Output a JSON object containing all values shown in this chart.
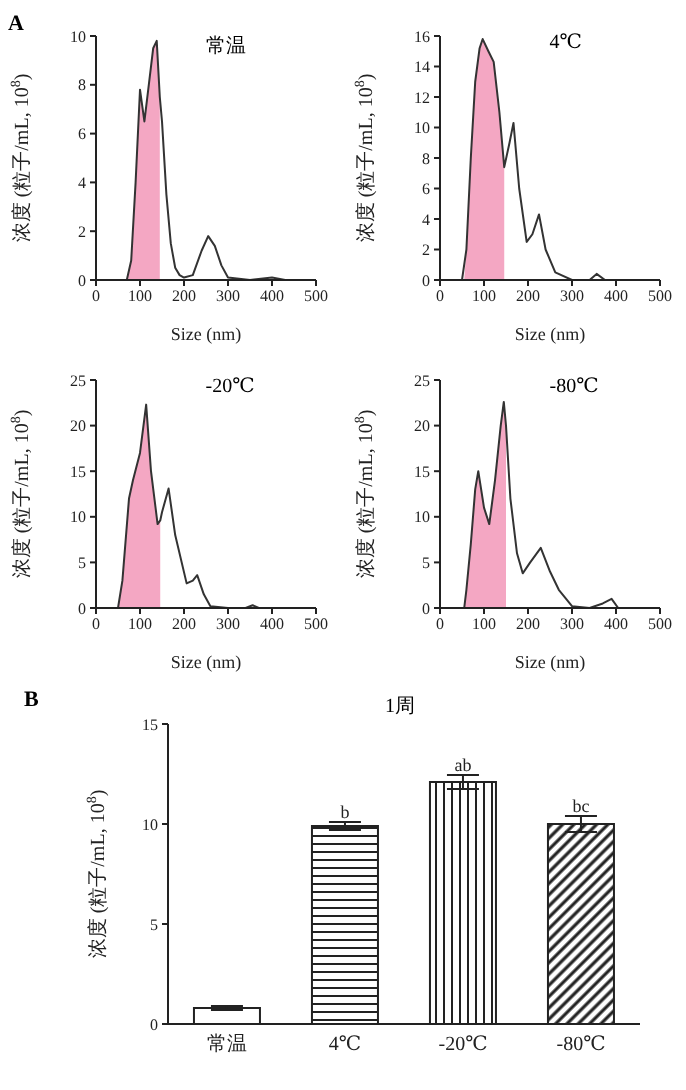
{
  "chart_data": [
    {
      "type": "line",
      "title": "常温",
      "xlabel": "Size (nm)",
      "ylabel": "浓度 (粒子/mL, 10$^{8}$)",
      "annotations": [
        "A"
      ],
      "marker": "none",
      "xlim": [
        0,
        500
      ],
      "xticks": [
        0,
        100,
        200,
        300,
        400,
        500
      ],
      "ylim": [
        0,
        10
      ],
      "yticks": [
        0,
        2,
        4,
        6,
        8,
        10
      ],
      "series": [
        {
          "type": "area",
          "color": "#f4a7c3",
          "x": [
            70,
            80,
            90,
            100,
            110,
            120,
            130,
            138,
            145
          ],
          "values": [
            0,
            0.8,
            4,
            7.8,
            6.5,
            8,
            9.5,
            9.8,
            7.5
          ]
        },
        {
          "type": "line",
          "color": "#333333",
          "x": [
            0,
            60,
            70,
            80,
            90,
            100,
            110,
            120,
            130,
            138,
            145,
            150,
            160,
            170,
            180,
            190,
            200,
            220,
            240,
            255,
            270,
            285,
            300,
            350,
            400,
            430,
            500
          ],
          "values": [
            0,
            0,
            0,
            0.8,
            4,
            7.8,
            6.5,
            8,
            9.5,
            9.8,
            7.5,
            6.5,
            3.5,
            1.5,
            0.5,
            0.2,
            0.1,
            0.2,
            1.2,
            1.8,
            1.4,
            0.6,
            0.1,
            0,
            0.1,
            0,
            0
          ]
        }
      ]
    },
    {
      "type": "line",
      "title": "4℃",
      "xlabel": "Size (nm)",
      "ylabel": "浓度 (粒子/mL, 10$^{8}$)",
      "marker": "none",
      "xlim": [
        0,
        500
      ],
      "xticks": [
        0,
        100,
        200,
        300,
        400,
        500
      ],
      "ylim": [
        0,
        16
      ],
      "yticks": [
        0,
        2,
        4,
        6,
        8,
        10,
        12,
        14,
        16
      ],
      "series": [
        {
          "type": "area",
          "color": "#f4a7c3",
          "x": [
            55,
            60,
            70,
            80,
            90,
            97,
            110,
            122,
            135,
            146
          ],
          "values": [
            0,
            2,
            8,
            13,
            15.2,
            15.8,
            15,
            14.3,
            11,
            7.4
          ]
        },
        {
          "type": "line",
          "color": "#333333",
          "x": [
            0,
            50,
            60,
            70,
            80,
            90,
            97,
            110,
            122,
            135,
            146,
            158,
            167,
            180,
            197,
            210,
            225,
            240,
            262,
            300,
            340,
            356,
            375,
            500
          ],
          "values": [
            0,
            0,
            2,
            8,
            13,
            15.2,
            15.8,
            15,
            14.3,
            11,
            7.4,
            9,
            10.3,
            6,
            2.5,
            3,
            4.3,
            2,
            0.5,
            0,
            0,
            0.4,
            0,
            0
          ]
        }
      ]
    },
    {
      "type": "line",
      "title": "-20℃",
      "xlabel": "Size (nm)",
      "ylabel": "浓度 (粒子/mL, 10$^{8}$)",
      "marker": "none",
      "xlim": [
        0,
        500
      ],
      "xticks": [
        0,
        100,
        200,
        300,
        400,
        500
      ],
      "ylim": [
        0,
        25
      ],
      "yticks": [
        0,
        5,
        10,
        15,
        20,
        25
      ],
      "series": [
        {
          "type": "area",
          "color": "#f4a7c3",
          "x": [
            50,
            60,
            70,
            75,
            84,
            100,
            114,
            125,
            140,
            146
          ],
          "values": [
            0,
            3,
            9,
            12,
            14,
            17,
            22.3,
            15,
            9.2,
            9.6
          ]
        },
        {
          "type": "line",
          "color": "#333333",
          "x": [
            0,
            40,
            50,
            60,
            70,
            75,
            84,
            100,
            114,
            125,
            140,
            146,
            150,
            165,
            180,
            206,
            220,
            230,
            245,
            260,
            300,
            340,
            356,
            370,
            500
          ],
          "values": [
            0,
            0,
            0,
            3,
            9,
            12,
            14,
            17,
            22.3,
            15,
            9.2,
            9.6,
            10.5,
            13.1,
            8,
            2.7,
            3,
            3.6,
            1.5,
            0.2,
            0,
            0,
            0.3,
            0,
            0
          ]
        }
      ]
    },
    {
      "type": "line",
      "title": "-80℃",
      "xlabel": "Size (nm)",
      "ylabel": "浓度 (粒子/mL, 10$^{8}$)",
      "marker": "none",
      "xlim": [
        0,
        500
      ],
      "xticks": [
        0,
        100,
        200,
        300,
        400,
        500
      ],
      "ylim": [
        0,
        25
      ],
      "yticks": [
        0,
        5,
        10,
        15,
        20,
        25
      ],
      "series": [
        {
          "type": "area",
          "color": "#f4a7c3",
          "x": [
            55,
            60,
            70,
            80,
            87,
            100,
            112,
            125,
            138,
            145,
            150
          ],
          "values": [
            0,
            2,
            7,
            13,
            15,
            11,
            9.2,
            14,
            20,
            22.6,
            20
          ]
        },
        {
          "type": "line",
          "color": "#333333",
          "x": [
            0,
            45,
            55,
            60,
            70,
            80,
            87,
            100,
            112,
            125,
            138,
            145,
            150,
            160,
            175,
            188,
            205,
            229,
            250,
            270,
            300,
            340,
            370,
            390,
            405,
            500
          ],
          "values": [
            0,
            0,
            0,
            2,
            7,
            13,
            15,
            11,
            9.2,
            14,
            20,
            22.6,
            20,
            12,
            6,
            3.8,
            5,
            6.6,
            4,
            2,
            0.2,
            0,
            0.5,
            1,
            0,
            0
          ]
        }
      ]
    },
    {
      "type": "bar",
      "title": "1周",
      "ylabel": "浓度 (粒子/mL, 10$^{8}$)",
      "categories": [
        "常温",
        "4℃",
        "-20℃",
        "-80℃"
      ],
      "values": [
        0.8,
        9.9,
        12.1,
        10.0
      ],
      "errors": [
        0.1,
        0.2,
        0.35,
        0.4
      ],
      "colors": [
        "#ffffff",
        "#222222",
        "#222222",
        "#222222"
      ],
      "ylim": [
        0,
        15
      ],
      "yticks": [
        0,
        5,
        10,
        15
      ],
      "annotations": [
        "B",
        {
          "text": "b",
          "x": "4℃",
          "y": 10.1
        },
        {
          "text": "ab",
          "x": "-20℃",
          "y": 12.45
        },
        {
          "text": "bc",
          "x": "-80℃",
          "y": 10.4
        }
      ]
    }
  ]
}
